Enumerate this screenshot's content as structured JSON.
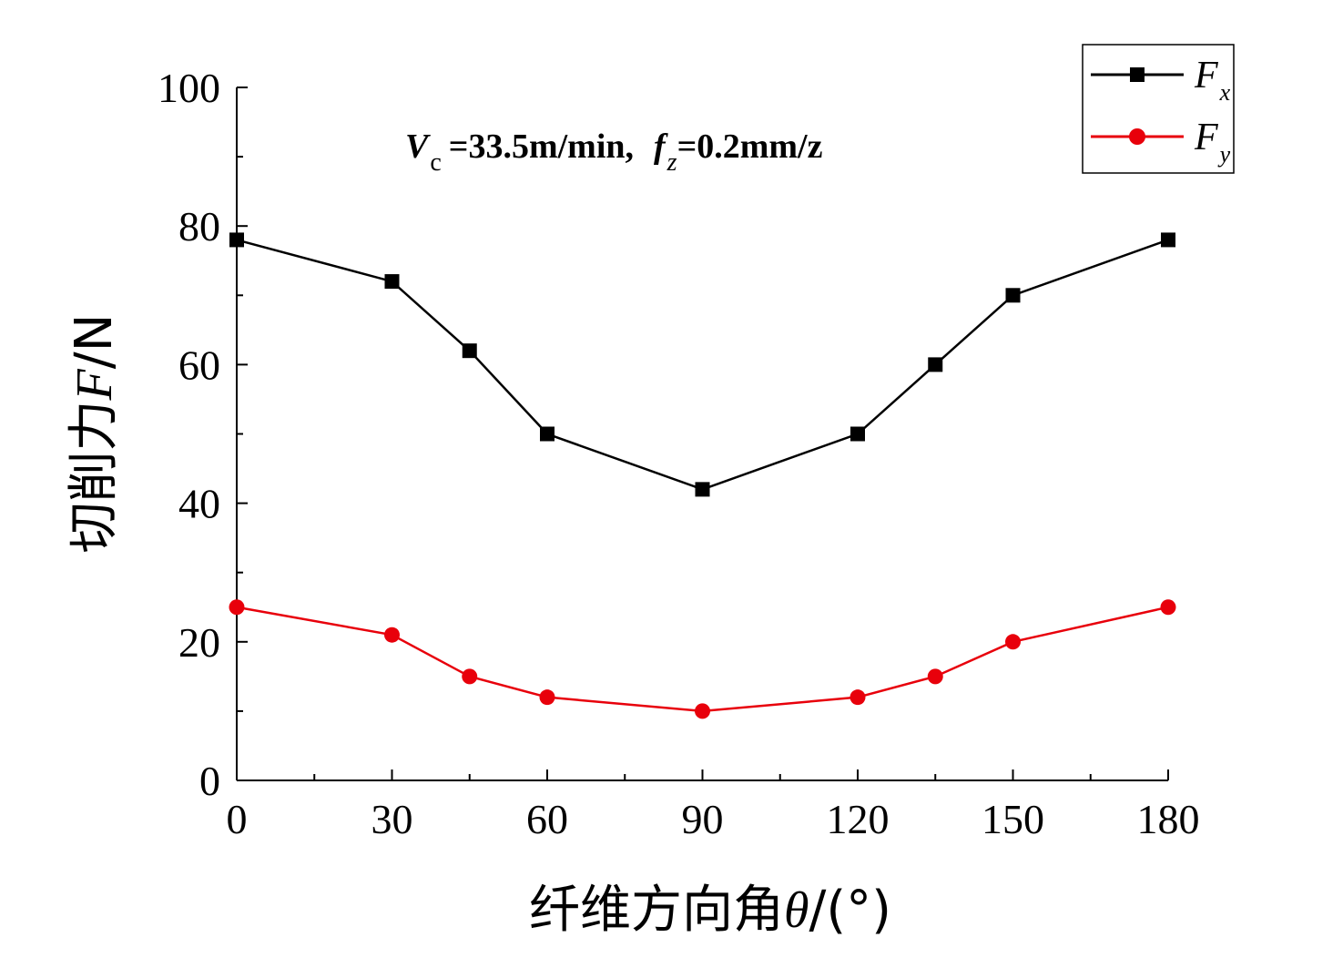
{
  "chart_data": {
    "type": "line",
    "x": [
      0,
      30,
      45,
      60,
      90,
      120,
      135,
      150,
      180
    ],
    "series": [
      {
        "name": "F",
        "subscript": "x",
        "color": "#000000",
        "marker": "square",
        "values": [
          78,
          72,
          62,
          50,
          42,
          50,
          60,
          70,
          78
        ]
      },
      {
        "name": "F",
        "subscript": "y",
        "color": "#e8000b",
        "marker": "circle",
        "values": [
          25,
          21,
          15,
          12,
          10,
          12,
          15,
          20,
          25
        ]
      }
    ],
    "xlabel": {
      "prefix": "纤维方向角",
      "symbol": "θ",
      "suffix": "/(°)"
    },
    "ylabel": {
      "prefix": "切削力",
      "symbol": "F",
      "suffix": "/N"
    },
    "xlim": [
      0,
      180
    ],
    "ylim": [
      0,
      100
    ],
    "xticks": [
      0,
      30,
      60,
      90,
      120,
      150,
      180
    ],
    "xticklabels": [
      "0",
      "30",
      "60",
      "90",
      "120",
      "150",
      "180"
    ],
    "yticks": [
      0,
      20,
      40,
      60,
      80,
      100
    ],
    "yticklabels": [
      "0",
      "20",
      "40",
      "60",
      "80",
      "100"
    ],
    "annotation": {
      "v_symbol": "V",
      "v_sub": "c",
      "v_value": "=33.5m/min,",
      "f_symbol": "f",
      "f_sub": "z",
      "f_value": "=0.2mm/z"
    },
    "grid": false,
    "legend_position": "top-right"
  }
}
